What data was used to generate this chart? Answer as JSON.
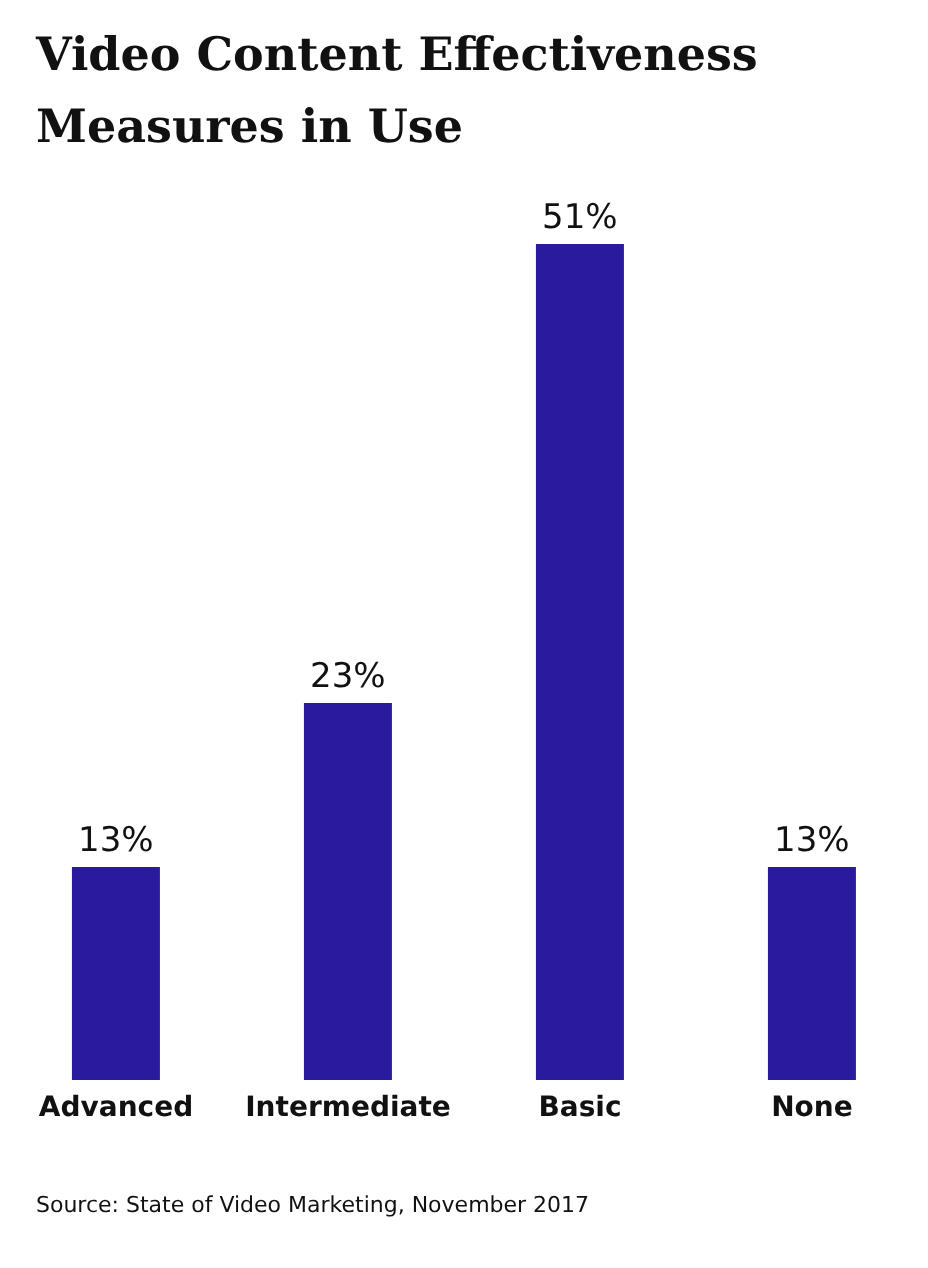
{
  "chart_data": {
    "type": "bar",
    "title": "Video Content Effectiveness Measures in Use",
    "categories": [
      "Advanced",
      "Intermediate",
      "Basic",
      "None"
    ],
    "values": [
      13,
      23,
      51,
      13
    ],
    "value_labels": [
      "13%",
      "23%",
      "51%",
      "13%"
    ],
    "color": "#2a1a9e",
    "grid": false,
    "annotations": [
      "Source: State of Video Marketing, November 2017"
    ]
  }
}
